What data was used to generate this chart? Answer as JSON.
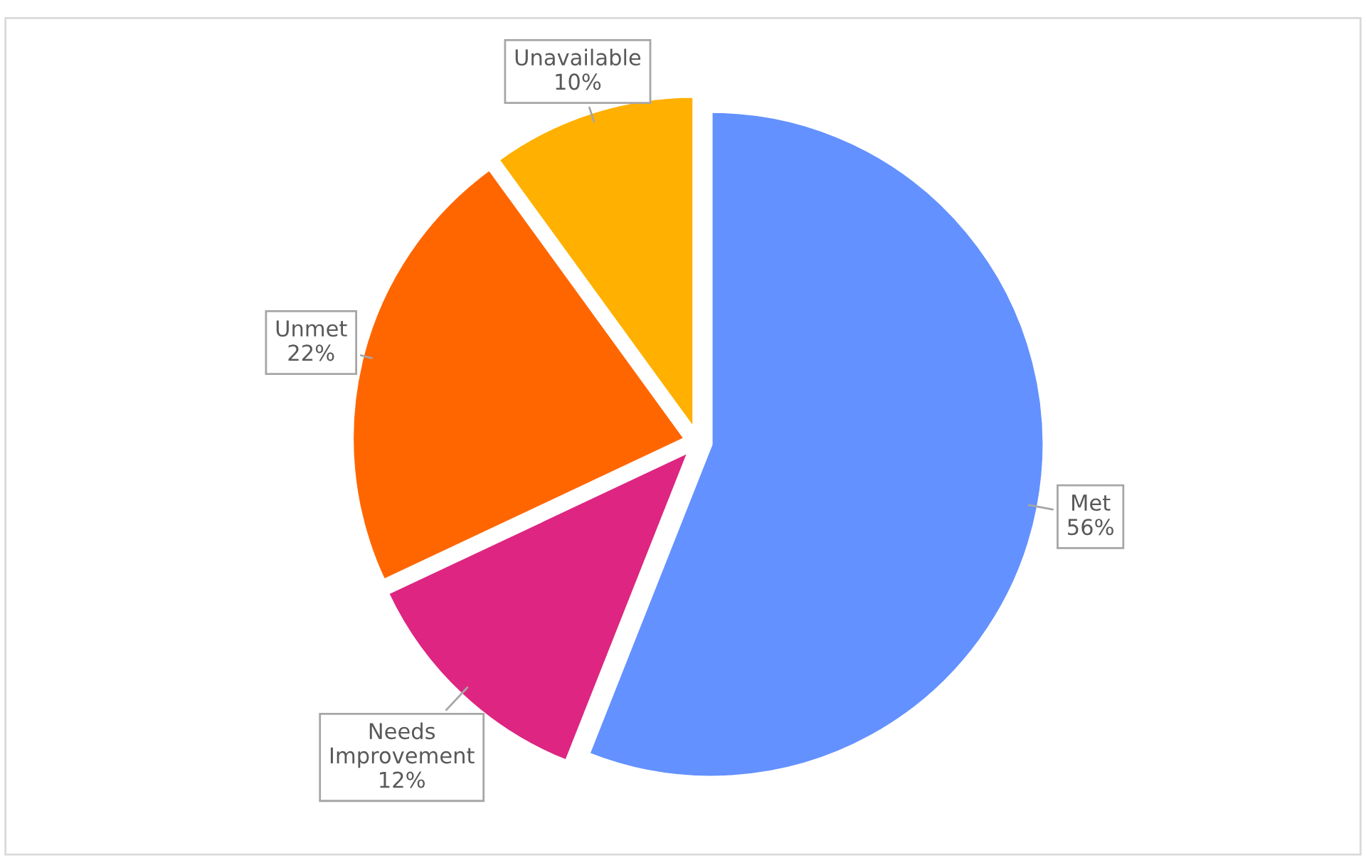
{
  "chart_data": {
    "type": "pie",
    "categories": [
      "Met",
      "Needs Improvement",
      "Unmet",
      "Unavailable"
    ],
    "values": [
      56,
      12,
      22,
      10
    ],
    "colors": [
      "#6391ff",
      "#dd2581",
      "#ff6600",
      "#ffb000"
    ],
    "value_labels": [
      "56%",
      "12%",
      "22%",
      "10%"
    ],
    "legend": false
  }
}
